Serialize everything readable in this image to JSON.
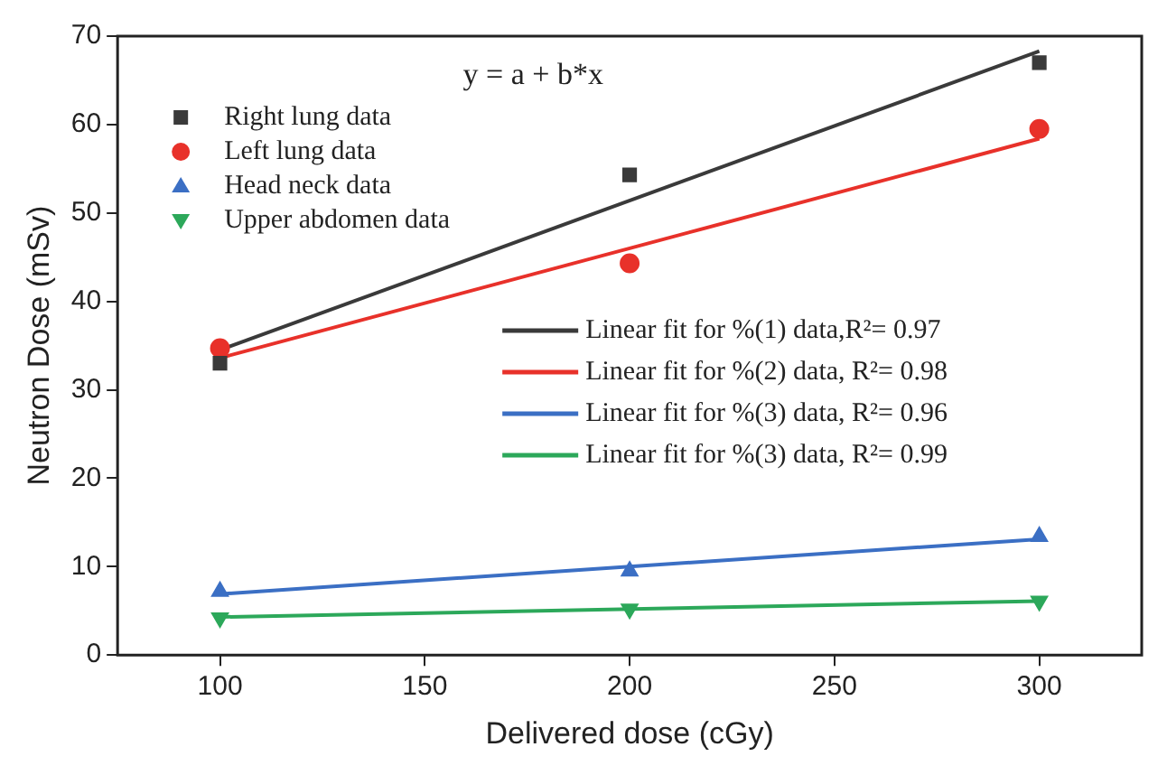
{
  "chart_data": {
    "type": "scatter",
    "xlabel": "Delivered dose (cGy)",
    "ylabel": "Neutron Dose (mSv)",
    "xlim": [
      75,
      325
    ],
    "xticks": [
      100,
      150,
      200,
      250,
      300
    ],
    "ylim": [
      0,
      70
    ],
    "yticks": [
      0,
      10,
      20,
      30,
      40,
      50,
      60,
      70
    ],
    "grid": false,
    "legend": "top left",
    "annotations": [
      "y = a + b*x"
    ],
    "series": [
      {
        "name": "Right lung data",
        "marker": "square",
        "color": "#3a3a3a",
        "x": [
          100,
          200,
          300
        ],
        "values": [
          33,
          54.3,
          67
        ]
      },
      {
        "name": "Left lung data",
        "marker": "circle",
        "color": "#e8312a",
        "x": [
          100,
          200,
          300
        ],
        "values": [
          34.7,
          44.3,
          59.5
        ]
      },
      {
        "name": "Head neck data",
        "marker": "triangle",
        "color": "#3b6fc4",
        "x": [
          100,
          200,
          300
        ],
        "values": [
          7.2,
          9.5,
          13.4
        ]
      },
      {
        "name": "Upper abdomen data",
        "marker": "triangle-down",
        "color": "#2ca85a",
        "x": [
          100,
          200,
          300
        ],
        "values": [
          4.2,
          5.2,
          6.1
        ]
      },
      {
        "name": "Linear fit for %(1) data,R²= 0.97",
        "type": "line",
        "marker": "none",
        "color": "#3a3a3a",
        "x": [
          100,
          300
        ],
        "values": [
          34.5,
          68.3
        ]
      },
      {
        "name": "Linear fit for %(2) data, R²= 0.98",
        "type": "line",
        "marker": "none",
        "color": "#e8312a",
        "x": [
          100,
          300
        ],
        "values": [
          33.6,
          58.4
        ]
      },
      {
        "name": "Linear fit for %(3) data, R²= 0.96",
        "type": "line",
        "marker": "none",
        "color": "#3b6fc4",
        "x": [
          100,
          300
        ],
        "values": [
          6.9,
          13.1
        ]
      },
      {
        "name": "Linear fit for %(3) data, R²= 0.99",
        "type": "line",
        "marker": "none",
        "color": "#2ca85a",
        "x": [
          100,
          300
        ],
        "values": [
          4.3,
          6.1
        ]
      }
    ]
  }
}
